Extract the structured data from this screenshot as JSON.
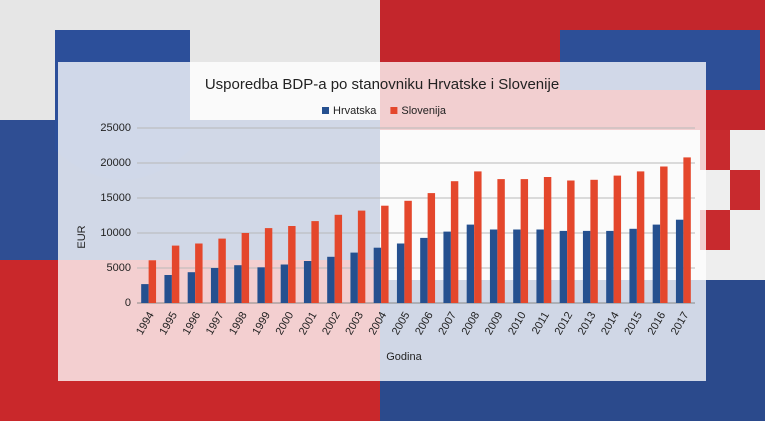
{
  "chart_data": {
    "type": "bar",
    "title": "Usporedba BDP-a po stanovniku Hrvatske i Slovenije",
    "x_label": "Godina",
    "y_label": "EUR",
    "categories": [
      "1994",
      "1995",
      "1996",
      "1997",
      "1998",
      "1999",
      "2000",
      "2001",
      "2002",
      "2003",
      "2004",
      "2005",
      "2006",
      "2007",
      "2008",
      "2009",
      "2010",
      "2011",
      "2012",
      "2013",
      "2014",
      "2015",
      "2016",
      "2017"
    ],
    "series": [
      {
        "name": "Hrvatska",
        "color": "#25508f",
        "values": [
          2700,
          4000,
          4400,
          5000,
          5400,
          5100,
          5500,
          6000,
          6600,
          7200,
          7900,
          8500,
          9300,
          10200,
          11200,
          10500,
          10500,
          10500,
          10300,
          10300,
          10300,
          10600,
          11200,
          11900
        ]
      },
      {
        "name": "Slovenija",
        "color": "#e4472c",
        "values": [
          6100,
          8200,
          8500,
          9200,
          10000,
          10700,
          11000,
          11700,
          12600,
          13200,
          13900,
          14600,
          15700,
          17400,
          18800,
          17700,
          17700,
          18000,
          17500,
          17600,
          18200,
          18800,
          19500,
          20800
        ]
      }
    ],
    "ylim": [
      0,
      25000
    ],
    "yticks": [
      0,
      5000,
      10000,
      15000,
      20000,
      25000
    ],
    "grid": true,
    "legend": "top"
  }
}
